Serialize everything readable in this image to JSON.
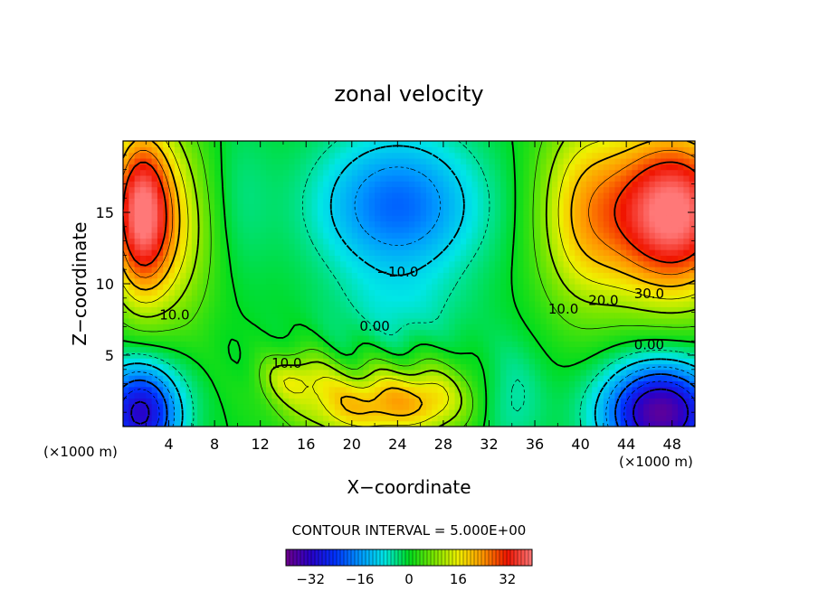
{
  "chart_data": {
    "type": "heatmap",
    "title": "zonal velocity",
    "xlabel": "X−coordinate",
    "ylabel": "Z−coordinate",
    "x_unit_left": "(×1000 m)",
    "x_unit_right": "(×1000 m)",
    "xlim": [
      0,
      50
    ],
    "ylim": [
      0,
      20
    ],
    "x_ticks": [
      4,
      8,
      12,
      16,
      20,
      24,
      28,
      32,
      36,
      40,
      44,
      48
    ],
    "x_tick_labels": [
      "4",
      "8",
      "12",
      "16",
      "20",
      "24",
      "28",
      "32",
      "36",
      "40",
      "44",
      "48"
    ],
    "y_ticks": [
      5,
      10,
      15
    ],
    "y_tick_labels": [
      "5",
      "10",
      "15"
    ],
    "contour_interval_text": "CONTOUR INTERVAL = 5.000E+00",
    "contour_labels": [
      {
        "text": "10.0",
        "x": 4.5,
        "y": 7.5
      },
      {
        "text": "10.0",
        "x": 14.3,
        "y": 4.1
      },
      {
        "text": "−10.0",
        "x": 24.0,
        "y": 10.5
      },
      {
        "text": "0.00",
        "x": 22.0,
        "y": 6.7
      },
      {
        "text": "10.0",
        "x": 38.5,
        "y": 7.9
      },
      {
        "text": "20.0",
        "x": 42.0,
        "y": 8.5
      },
      {
        "text": "30.0",
        "x": 46.0,
        "y": 9.0
      },
      {
        "text": "0.00",
        "x": 46.0,
        "y": 5.4
      }
    ],
    "colorbar": {
      "min": -40,
      "max": 40,
      "ticks": [
        -32,
        -16,
        0,
        16,
        32
      ],
      "tick_labels": [
        "−32",
        "−16",
        "0",
        "16",
        "32"
      ]
    },
    "grid": false,
    "colormap": "rainbow (purple-blue-cyan-green-yellow-orange-red-pink)"
  }
}
